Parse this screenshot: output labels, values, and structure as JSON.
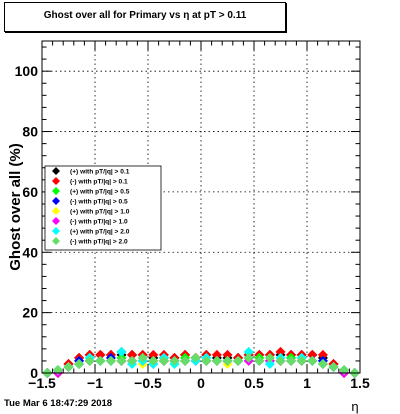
{
  "title": "Ghost over all for Primary vs   η at pT > 0.11",
  "footer": "Tue Mar  6 18:47:29 2018",
  "chart_data": {
    "type": "scatter",
    "title": "Ghost over all for Primary vs   η at pT > 0.11",
    "xlabel": "η",
    "ylabel": "Ghost over all (%)",
    "xlim": [
      -1.5,
      1.5
    ],
    "ylim": [
      0,
      110
    ],
    "xticks": [
      "−1.5",
      "−1",
      "−0.5",
      "0",
      "0.5",
      "1",
      "1.5"
    ],
    "yticks": [
      "0",
      "20",
      "40",
      "60",
      "80",
      "100"
    ],
    "grid": true,
    "legend_position": "middle-left",
    "series": [
      {
        "name": "(+) with pT/|q| > 0.1",
        "color": "#000000",
        "x": [
          -1.45,
          -1.35,
          -1.25,
          -1.15,
          -1.05,
          -0.95,
          -0.85,
          -0.75,
          -0.65,
          -0.55,
          -0.45,
          -0.35,
          -0.25,
          -0.15,
          -0.05,
          0.05,
          0.15,
          0.25,
          0.35,
          0.45,
          0.55,
          0.65,
          0.75,
          0.85,
          0.95,
          1.05,
          1.15,
          1.25,
          1.35,
          1.45
        ],
        "y": [
          0,
          0,
          3,
          5,
          6,
          6,
          6,
          6,
          6,
          6,
          5,
          5,
          5,
          6,
          5,
          6,
          5,
          5,
          5,
          6,
          6,
          6,
          6,
          6,
          6,
          6,
          5,
          3,
          0,
          0
        ]
      },
      {
        "name": "(-) with pT/|q| > 0.1",
        "color": "#ff0000",
        "x": [
          -1.45,
          -1.35,
          -1.25,
          -1.15,
          -1.05,
          -0.95,
          -0.85,
          -0.75,
          -0.65,
          -0.55,
          -0.45,
          -0.35,
          -0.25,
          -0.15,
          -0.05,
          0.05,
          0.15,
          0.25,
          0.35,
          0.45,
          0.55,
          0.65,
          0.75,
          0.85,
          0.95,
          1.05,
          1.15,
          1.25,
          1.35,
          1.45
        ],
        "y": [
          0,
          0,
          3,
          5,
          6,
          6,
          6,
          7,
          6,
          6,
          6,
          6,
          5,
          6,
          5,
          6,
          6,
          6,
          5,
          6,
          6,
          6,
          7,
          6,
          6,
          6,
          6,
          3,
          0,
          0
        ]
      },
      {
        "name": "(+) with pT/|q| > 0.5",
        "color": "#00ff00",
        "x": [
          -1.45,
          -1.35,
          -1.25,
          -1.15,
          -1.05,
          -0.95,
          -0.85,
          -0.75,
          -0.65,
          -0.55,
          -0.45,
          -0.35,
          -0.25,
          -0.15,
          -0.05,
          0.05,
          0.15,
          0.25,
          0.35,
          0.45,
          0.55,
          0.65,
          0.75,
          0.85,
          0.95,
          1.05,
          1.15,
          1.25,
          1.35,
          1.45
        ],
        "y": [
          0,
          0,
          2,
          4,
          5,
          4,
          4,
          5,
          4,
          4,
          4,
          4,
          4,
          5,
          4,
          4,
          4,
          4,
          4,
          5,
          5,
          4,
          4,
          5,
          5,
          4,
          4,
          2,
          0,
          0
        ]
      },
      {
        "name": "(-) with pT/|q| > 0.5",
        "color": "#0000ff",
        "x": [
          -1.45,
          -1.35,
          -1.25,
          -1.15,
          -1.05,
          -0.95,
          -0.85,
          -0.75,
          -0.65,
          -0.55,
          -0.45,
          -0.35,
          -0.25,
          -0.15,
          -0.05,
          0.05,
          0.15,
          0.25,
          0.35,
          0.45,
          0.55,
          0.65,
          0.75,
          0.85,
          0.95,
          1.05,
          1.15,
          1.25,
          1.35,
          1.45
        ],
        "y": [
          0,
          0,
          2,
          4,
          4,
          4,
          5,
          4,
          4,
          4,
          4,
          4,
          4,
          4,
          4,
          4,
          4,
          4,
          4,
          5,
          4,
          4,
          4,
          4,
          4,
          4,
          4,
          2,
          0,
          0
        ]
      },
      {
        "name": "(+) with pT/|q| > 1.0",
        "color": "#ffff00",
        "x": [
          -1.45,
          -1.35,
          -1.25,
          -1.15,
          -1.05,
          -0.95,
          -0.85,
          -0.75,
          -0.65,
          -0.55,
          -0.45,
          -0.35,
          -0.25,
          -0.15,
          -0.05,
          0.05,
          0.15,
          0.25,
          0.35,
          0.45,
          0.55,
          0.65,
          0.75,
          0.85,
          0.95,
          1.05,
          1.15,
          1.25,
          1.35,
          1.45
        ],
        "y": [
          0,
          0,
          2,
          3,
          4,
          4,
          4,
          4,
          4,
          3,
          4,
          4,
          3,
          4,
          4,
          4,
          4,
          3,
          4,
          4,
          4,
          4,
          4,
          4,
          4,
          4,
          3,
          2,
          0,
          0
        ]
      },
      {
        "name": "(-) with pT/|q| > 1.0",
        "color": "#ff00ff",
        "x": [
          -1.45,
          -1.35,
          -1.25,
          -1.15,
          -1.05,
          -0.95,
          -0.85,
          -0.75,
          -0.65,
          -0.55,
          -0.45,
          -0.35,
          -0.25,
          -0.15,
          -0.05,
          0.05,
          0.15,
          0.25,
          0.35,
          0.45,
          0.55,
          0.65,
          0.75,
          0.85,
          0.95,
          1.05,
          1.15,
          1.25,
          1.35,
          1.45
        ],
        "y": [
          0,
          0,
          2,
          3,
          4,
          4,
          4,
          4,
          4,
          4,
          3,
          4,
          4,
          4,
          4,
          4,
          4,
          4,
          4,
          4,
          4,
          4,
          4,
          4,
          4,
          4,
          3,
          2,
          0,
          0
        ]
      },
      {
        "name": "(+) with pT/|q| > 2.0",
        "color": "#00ffff",
        "x": [
          -1.45,
          -1.35,
          -1.25,
          -1.15,
          -1.05,
          -0.95,
          -0.85,
          -0.75,
          -0.65,
          -0.55,
          -0.45,
          -0.35,
          -0.25,
          -0.15,
          -0.05,
          0.05,
          0.15,
          0.25,
          0.35,
          0.45,
          0.55,
          0.65,
          0.75,
          0.85,
          0.95,
          1.05,
          1.15,
          1.25,
          1.35,
          1.45
        ],
        "y": [
          0,
          1,
          2,
          3,
          5,
          4,
          4,
          7,
          3,
          4,
          3,
          5,
          3,
          4,
          4,
          5,
          4,
          4,
          4,
          7,
          4,
          3,
          5,
          4,
          5,
          4,
          3,
          2,
          1,
          0
        ]
      },
      {
        "name": "(-) with pT/|q| > 2.0",
        "color": "#66dd66",
        "x": [
          -1.45,
          -1.35,
          -1.25,
          -1.15,
          -1.05,
          -0.95,
          -0.85,
          -0.75,
          -0.65,
          -0.55,
          -0.45,
          -0.35,
          -0.25,
          -0.15,
          -0.05,
          0.05,
          0.15,
          0.25,
          0.35,
          0.45,
          0.55,
          0.65,
          0.75,
          0.85,
          0.95,
          1.05,
          1.15,
          1.25,
          1.35,
          1.45
        ],
        "y": [
          0,
          1,
          2,
          3,
          4,
          4,
          4,
          4,
          4,
          5,
          4,
          4,
          4,
          4,
          5,
          4,
          4,
          4,
          4,
          5,
          4,
          5,
          4,
          4,
          4,
          4,
          3,
          2,
          1,
          0
        ]
      }
    ]
  }
}
